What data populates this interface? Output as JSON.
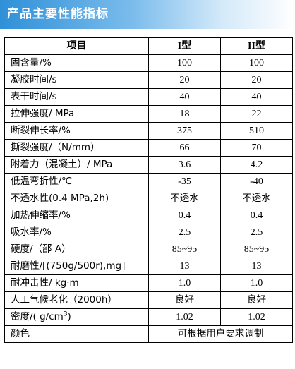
{
  "header": {
    "title": "产品主要性能指标"
  },
  "table": {
    "columns": {
      "item": "项目",
      "type1": "I型",
      "type2": "II型"
    },
    "rows": [
      {
        "name": "固含量/%",
        "type1": "100",
        "type2": "100"
      },
      {
        "name": "凝胶时间/s",
        "type1": "20",
        "type2": "20"
      },
      {
        "name": "表干时间/s",
        "type1": "40",
        "type2": "40"
      },
      {
        "name": "拉伸强度/ MPa",
        "type1": "18",
        "type2": "22"
      },
      {
        "name": "断裂伸长率/%",
        "type1": "375",
        "type2": "510"
      },
      {
        "name": "撕裂强度/（N/mm）",
        "type1": "66",
        "type2": "70"
      },
      {
        "name": "附着力（混凝土）/ MPa",
        "type1": "3.6",
        "type2": "4.2"
      },
      {
        "name": "低温弯折性/℃",
        "type1": "-35",
        "type2": "-40"
      },
      {
        "name": "不透水性(0.4 MPa,2h)",
        "type1": "不透水",
        "type2": "不透水"
      },
      {
        "name": "加热伸缩率/%",
        "type1": "0.4",
        "type2": "0.4"
      },
      {
        "name": "吸水率/%",
        "type1": "2.5",
        "type2": "2.5"
      },
      {
        "name": "硬度/（邵 A）",
        "type1": "85~95",
        "type2": "85~95"
      },
      {
        "name": "耐磨性/[(750g/500r),mg]",
        "type1": "13",
        "type2": "13"
      },
      {
        "name": "耐冲击性/ kg·m",
        "type1": "1.0",
        "type2": "1.0"
      },
      {
        "name": "人工气候老化（2000h）",
        "type1": "良好",
        "type2": "良好"
      }
    ],
    "density": {
      "name_prefix": "密度/( g/cm",
      "name_sup": "3",
      "name_suffix": ")",
      "type1": "1.02",
      "type2": "1.02"
    },
    "color": {
      "name": "颜色",
      "value": "可根据用户要求调制"
    }
  }
}
